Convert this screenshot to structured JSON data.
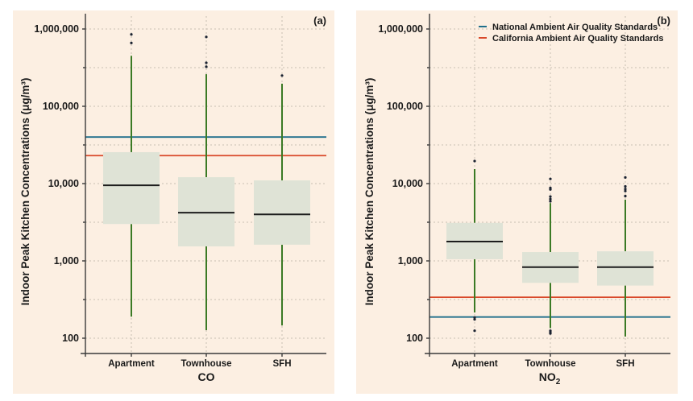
{
  "chart_data": [
    {
      "type": "box",
      "panel": "(a)",
      "pollutant": "CO",
      "xlabel": "CO",
      "ylabel": "Indoor Peak Kitchen Concentrations (μg/m³)",
      "yscale": "log",
      "ylim": [
        60,
        1500000
      ],
      "yticks": [
        100,
        1000,
        10000,
        100000,
        1000000
      ],
      "ytick_labels": [
        "100",
        "1,000",
        "10,000",
        "100,000",
        "1,000,000"
      ],
      "categories": [
        "Apartment",
        "Townhouse",
        "SFH"
      ],
      "grid": true,
      "boxes": [
        {
          "category": "Apartment",
          "whisker_low": 190,
          "q1": 3000,
          "median": 9500,
          "q3": 25500,
          "whisker_high": 450000,
          "outliers": [
            660000,
            850000
          ]
        },
        {
          "category": "Townhouse",
          "whisker_low": 127,
          "q1": 1540,
          "median": 4200,
          "q3": 12100,
          "whisker_high": 260000,
          "outliers": [
            325000,
            365000,
            790000
          ]
        },
        {
          "category": "SFH",
          "whisker_low": 146,
          "q1": 1620,
          "median": 4000,
          "q3": 11000,
          "whisker_high": 196000,
          "outliers": [
            250000
          ]
        }
      ],
      "reference_lines": [
        {
          "name": "National Ambient Air Quality Standards",
          "value": 40000,
          "color": "#1f6f8b"
        },
        {
          "name": "California Ambient Air Quality Standards",
          "value": 23000,
          "color": "#d9492a"
        }
      ],
      "legend": null
    },
    {
      "type": "box",
      "panel": "(b)",
      "pollutant": "NO2",
      "xlabel": "NO",
      "xlabel_sub": "2",
      "ylabel": "Indoor Peak Kitchen Concentrations (μg/m³)",
      "yscale": "log",
      "ylim": [
        60,
        1500000
      ],
      "yticks": [
        100,
        1000,
        10000,
        100000,
        1000000
      ],
      "ytick_labels": [
        "100",
        "1,000",
        "10,000",
        "100,000",
        "1,000,000"
      ],
      "categories": [
        "Apartment",
        "Townhouse",
        "SFH"
      ],
      "grid": true,
      "boxes": [
        {
          "category": "Apartment",
          "whisker_low": 215,
          "q1": 1050,
          "median": 1780,
          "q3": 3100,
          "whisker_high": 15400,
          "outliers": [
            125,
            175,
            185,
            19600
          ]
        },
        {
          "category": "Townhouse",
          "whisker_low": 135,
          "q1": 520,
          "median": 830,
          "q3": 1300,
          "whisker_high": 5600,
          "outliers": [
            115,
            120,
            125,
            5900,
            6300,
            6800,
            8400,
            8800,
            11500
          ]
        },
        {
          "category": "SFH",
          "whisker_low": 105,
          "q1": 480,
          "median": 830,
          "q3": 1330,
          "whisker_high": 6200,
          "outliers": [
            6900,
            8000,
            8500,
            9200,
            12000
          ]
        }
      ],
      "reference_lines": [
        {
          "name": "National Ambient Air Quality Standards",
          "value": 188,
          "color": "#1f6f8b"
        },
        {
          "name": "California Ambient Air Quality Standards",
          "value": 339,
          "color": "#d9492a"
        }
      ],
      "legend": {
        "position": "top-right",
        "entries": [
          {
            "label": "National Ambient Air Quality Standards",
            "color": "#1f6f8b"
          },
          {
            "label": "California Ambient Air Quality Standards",
            "color": "#d9492a"
          }
        ]
      }
    }
  ],
  "colors": {
    "panel_background": "#fcefe2",
    "box_fill": "#dfe3d6",
    "whisker": "#3b7a25",
    "median": "#1d1d1d",
    "outlier": "#1a2230"
  }
}
